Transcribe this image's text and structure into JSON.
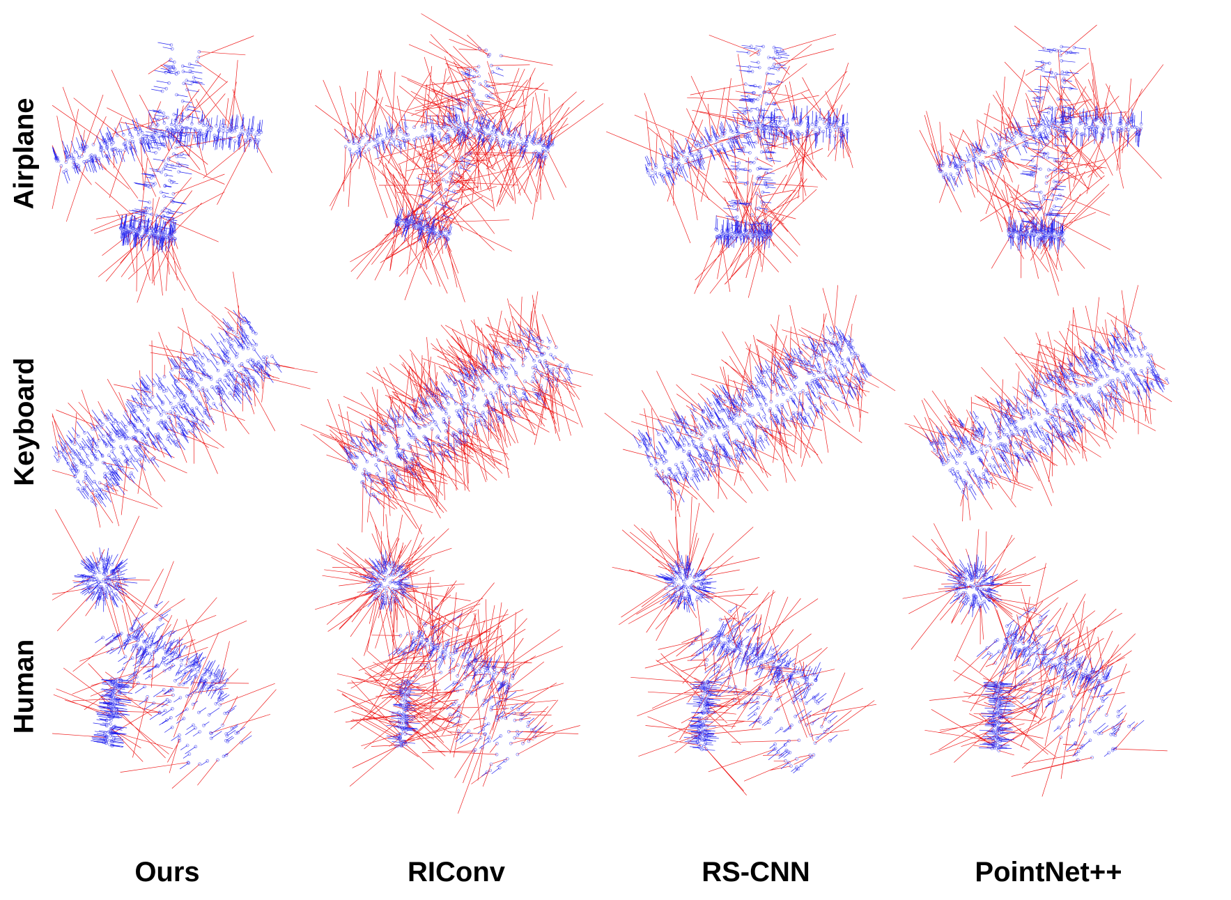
{
  "figure": {
    "rows": [
      {
        "key": "airplane",
        "label": "Airplane"
      },
      {
        "key": "keyboard",
        "label": "Keyboard"
      },
      {
        "key": "human",
        "label": "Human"
      }
    ],
    "columns": [
      {
        "key": "ours",
        "label": "Ours",
        "red_share": 0.18
      },
      {
        "key": "riconv",
        "label": "RIConv",
        "red_share": 0.62
      },
      {
        "key": "rscnn",
        "label": "RS-CNN",
        "red_share": 0.3
      },
      {
        "key": "pointnetpp",
        "label": "PointNet++",
        "red_share": 0.34
      }
    ]
  },
  "colors": {
    "consistent": "#2222ee",
    "inconsistent": "#ee1a1a",
    "background": "#ffffff",
    "text": "#000000"
  }
}
